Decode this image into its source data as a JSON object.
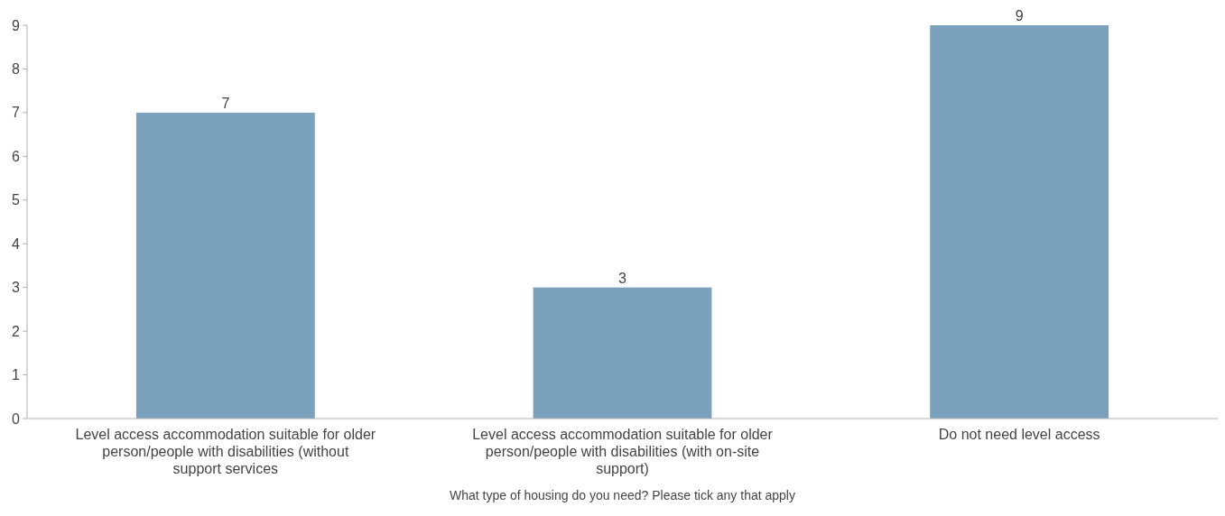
{
  "chart_data": {
    "type": "bar",
    "xlabel": "What type of housing do you need? Please tick any that apply",
    "categories": [
      "Level access accommodation suitable for older person/people with disabilities (without support services",
      "Level access accommodation suitable for older person/people with disabilities (with on-site support)",
      "Do not need level access"
    ],
    "values": [
      7,
      3,
      9
    ],
    "color": "#7ba1bd",
    "ylim": [
      0,
      9
    ],
    "yticks": [
      0,
      1,
      2,
      3,
      4,
      5,
      6,
      7,
      8,
      9
    ],
    "grid": false,
    "data_labels": true
  }
}
